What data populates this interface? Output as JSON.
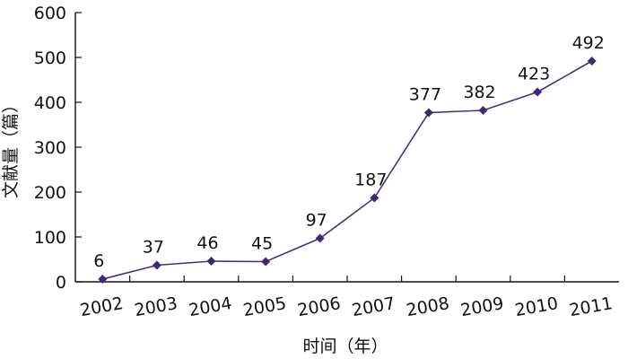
{
  "chart_data": {
    "type": "line",
    "xlabel": "时间（年）",
    "ylabel": "文献量（篇）",
    "ylim": [
      0,
      600
    ],
    "yticks": [
      "0",
      "100",
      "200",
      "300",
      "400",
      "500",
      "600"
    ],
    "categories": [
      "2002",
      "2003",
      "2004",
      "2005",
      "2006",
      "2007",
      "2008",
      "2009",
      "2010",
      "2011"
    ],
    "values": [
      6,
      37,
      46,
      45,
      97,
      187,
      377,
      382,
      423,
      492
    ],
    "data_labels": [
      "6",
      "37",
      "46",
      "45",
      "97",
      "187",
      "377",
      "382",
      "423",
      "492"
    ],
    "marker": "diamond",
    "line_color": "#4b2f7f",
    "marker_color": "#3d2a73",
    "grid": false,
    "legend": "none"
  }
}
